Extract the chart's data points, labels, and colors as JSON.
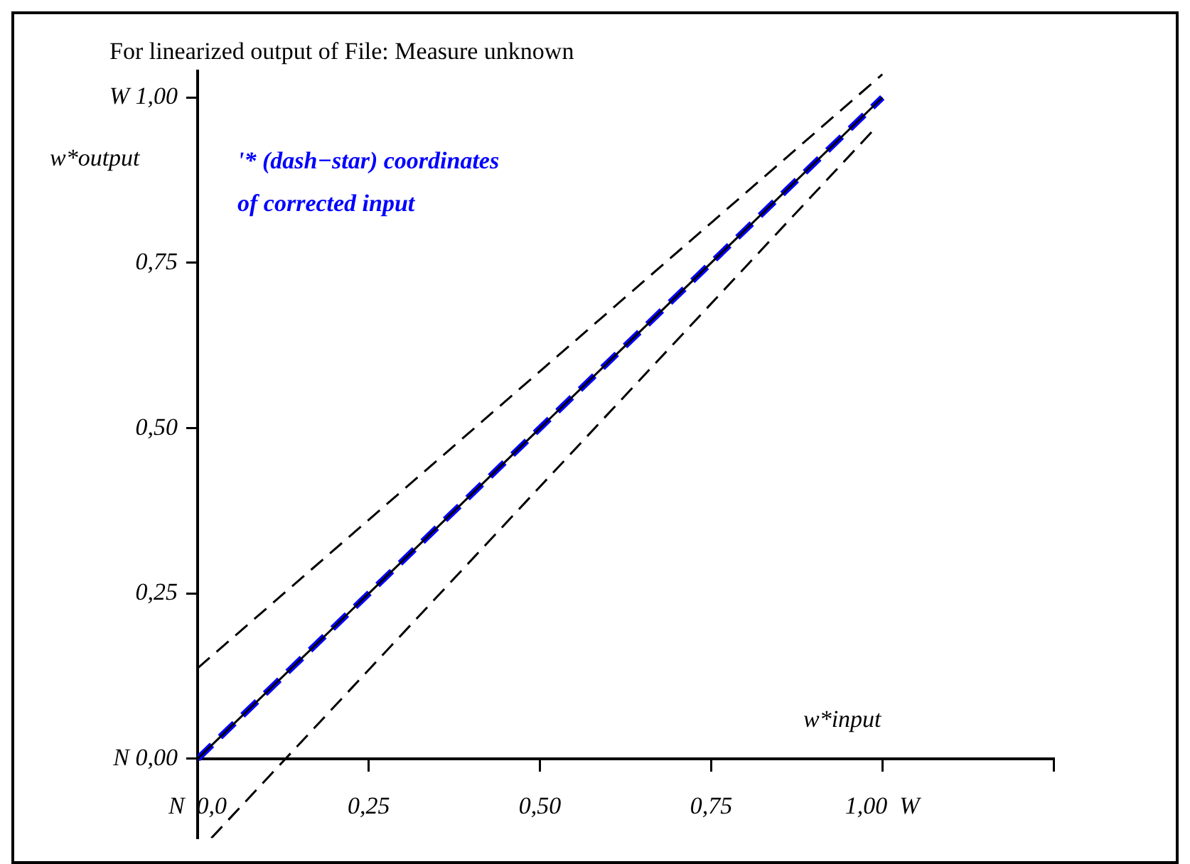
{
  "chart_data": {
    "type": "line",
    "title": "For linearized output of File: Measure unknown",
    "xlabel": "w*input",
    "ylabel": "w*output",
    "annotations": [
      "'* (dash−star) coordinates\nof corrected input"
    ],
    "series": [
      {
        "color": "#000000",
        "x": [
          0,
          1
        ],
        "values": [
          0,
          1
        ],
        "line_style": "solid"
      },
      {
        "color": "#0000ff",
        "x": [
          0,
          1
        ],
        "values": [
          0,
          1
        ],
        "line_style": "dashed"
      },
      {
        "color": "#000000",
        "x": [
          0,
          1
        ],
        "values": [
          0.137,
          1.035
        ],
        "line_style": "dashed"
      },
      {
        "color": "#000000",
        "x": [
          0.02,
          0.99
        ],
        "values": [
          -0.12,
          0.954
        ],
        "line_style": "dashed"
      }
    ],
    "xlim": [
      0,
      1.25
    ],
    "ylim": [
      -0.12,
      1.04
    ],
    "xticks": [
      {
        "value": 0,
        "label": "N  0,0"
      },
      {
        "value": 0.25,
        "label": "0,25"
      },
      {
        "value": 0.5,
        "label": "0,50"
      },
      {
        "value": 0.75,
        "label": "0,75"
      },
      {
        "value": 1,
        "label": "1,00  W"
      },
      {
        "value": 1.25,
        "label": null
      }
    ],
    "yticks": [
      {
        "value": 0,
        "label": "N 0,00"
      },
      {
        "value": 0.25,
        "label": "0,25"
      },
      {
        "value": 0.5,
        "label": "0,50"
      },
      {
        "value": 0.75,
        "label": "0,75"
      },
      {
        "value": 1,
        "label": "W 1,00"
      }
    ],
    "grid": false,
    "legend": false,
    "marker": "none"
  }
}
